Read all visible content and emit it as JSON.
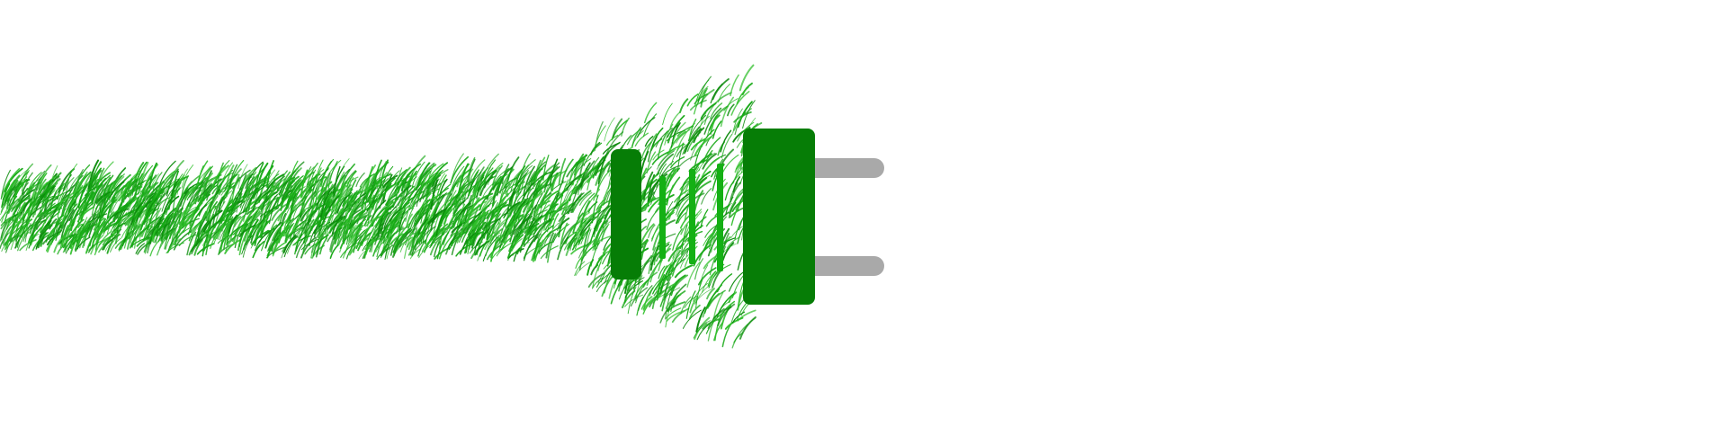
{
  "scene": {
    "subject": "green-grass-electric-plug",
    "colors": {
      "background": "#ffffff",
      "grass_light": "#2fbf2a",
      "grass_mid": "#16a815",
      "grass_dark": "#0b8a0b",
      "plug_body": "#067d06",
      "plug_ridge": "#14b014",
      "prong": "#a9a9a9"
    },
    "icons": [
      "grass-cable-icon",
      "plug-icon",
      "prong-icon"
    ]
  }
}
